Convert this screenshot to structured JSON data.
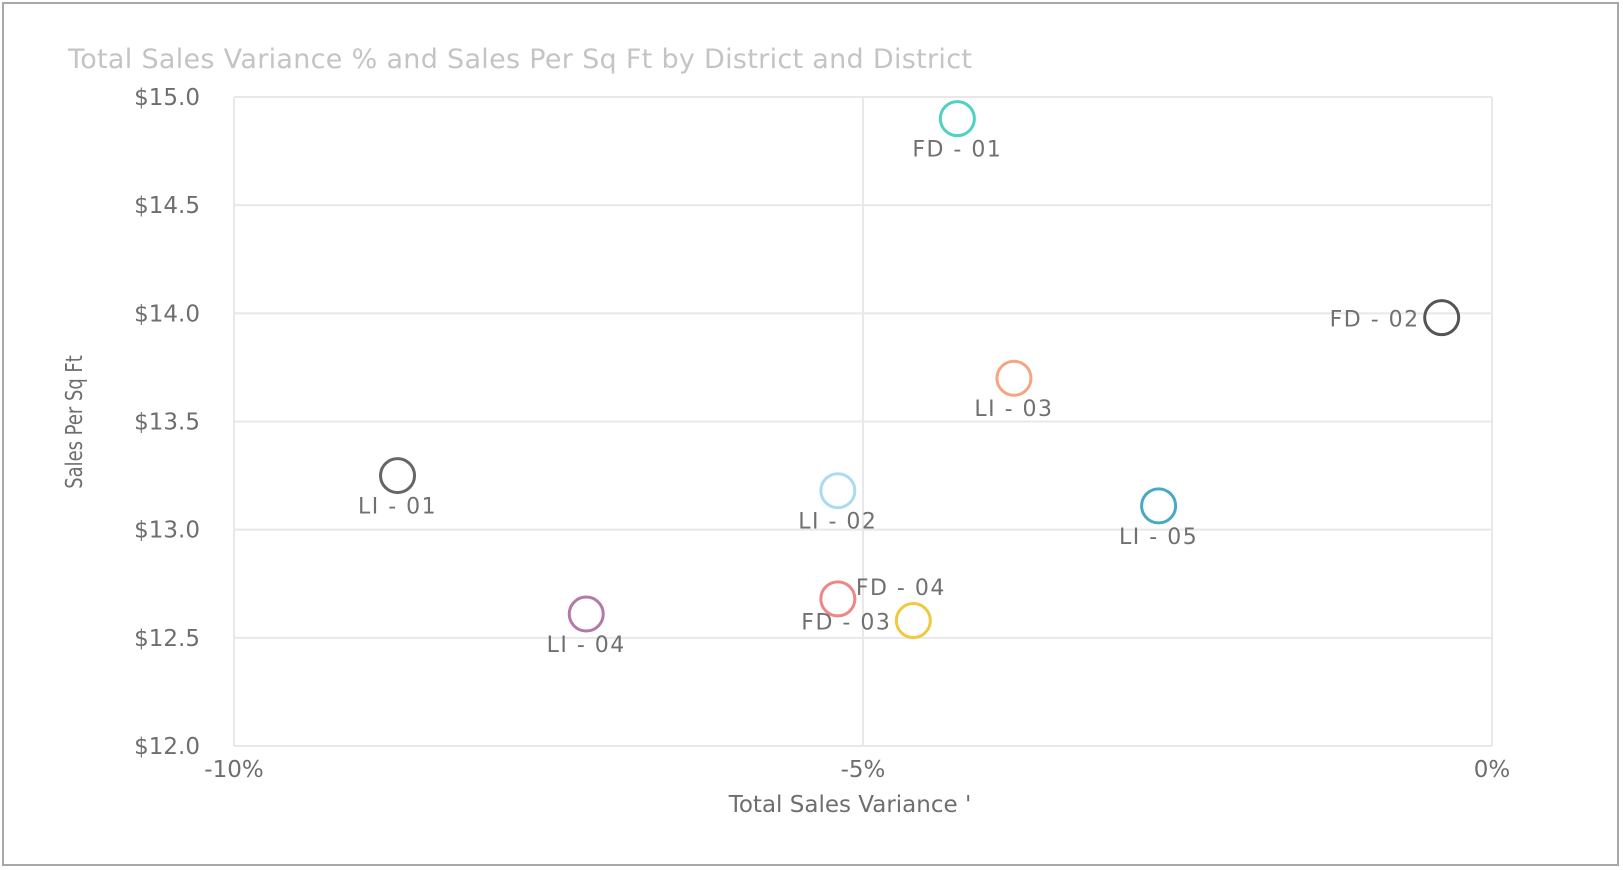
{
  "chart_data": {
    "type": "scatter",
    "title": "Total Sales Variance % and Sales Per Sq Ft by District and District",
    "xlabel": "Total Sales Variance '",
    "ylabel": "Sales Per Sq Ft",
    "xlim": [
      -10,
      0
    ],
    "ylim": [
      12.0,
      15.0
    ],
    "x_ticks": [
      {
        "value": -10,
        "label": "-10%"
      },
      {
        "value": -5,
        "label": "-5%"
      },
      {
        "value": 0,
        "label": "0%"
      }
    ],
    "y_ticks": [
      {
        "value": 12.0,
        "label": "$12.0"
      },
      {
        "value": 12.5,
        "label": "$12.5"
      },
      {
        "value": 13.0,
        "label": "$13.0"
      },
      {
        "value": 13.5,
        "label": "$13.5"
      },
      {
        "value": 14.0,
        "label": "$14.0"
      },
      {
        "value": 14.5,
        "label": "$14.5"
      },
      {
        "value": 15.0,
        "label": "$15.0"
      }
    ],
    "grid": true,
    "points": [
      {
        "label": "FD - 01",
        "x": -4.25,
        "y": 14.9,
        "color": "#4fd1c5",
        "label_pos": "below"
      },
      {
        "label": "FD - 02",
        "x": -0.4,
        "y": 13.98,
        "color": "#555555",
        "label_pos": "left"
      },
      {
        "label": "LI - 03",
        "x": -3.8,
        "y": 13.7,
        "color": "#f5a57f",
        "label_pos": "below"
      },
      {
        "label": "LI - 01",
        "x": -8.7,
        "y": 13.25,
        "color": "#666666",
        "label_pos": "below"
      },
      {
        "label": "LI - 02",
        "x": -5.2,
        "y": 13.18,
        "color": "#a9dcf2",
        "label_pos": "below"
      },
      {
        "label": "LI - 05",
        "x": -2.65,
        "y": 13.11,
        "color": "#49a8c6",
        "label_pos": "below"
      },
      {
        "label": "FD - 04",
        "x": -5.2,
        "y": 12.68,
        "color": "#f08585",
        "label_pos": "right-above"
      },
      {
        "label": "LI - 04",
        "x": -7.2,
        "y": 12.61,
        "color": "#b678a8",
        "label_pos": "below"
      },
      {
        "label": "FD - 03",
        "x": -4.6,
        "y": 12.58,
        "color": "#f0c93c",
        "label_pos": "left"
      }
    ]
  }
}
